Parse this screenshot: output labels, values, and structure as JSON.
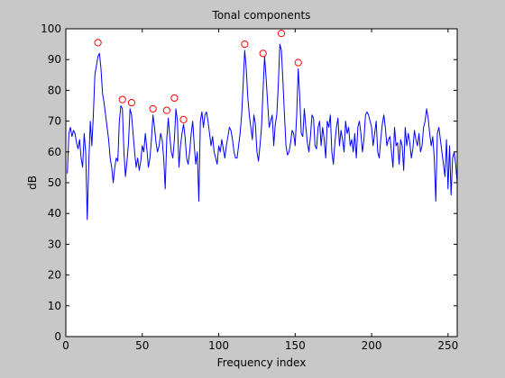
{
  "chart_data": {
    "type": "line",
    "title": "Tonal components",
    "xlabel": "Frequency index",
    "ylabel": "dB",
    "xlim": [
      0,
      256
    ],
    "ylim": [
      0,
      100
    ],
    "xticks": [
      0,
      50,
      100,
      150,
      200,
      250
    ],
    "yticks": [
      0,
      10,
      20,
      30,
      40,
      50,
      60,
      70,
      80,
      90,
      100
    ],
    "grid": false,
    "colors": {
      "line": "#0000ff",
      "marker": "#ff0000",
      "axes_bg": "#ffffff",
      "figure_bg": "#c8c8c8"
    },
    "series": [
      {
        "x": [
          1,
          2,
          3,
          4,
          5,
          6,
          7,
          8,
          9,
          10,
          11,
          12,
          13,
          14,
          15,
          16,
          17,
          18,
          19,
          20,
          21,
          22,
          23,
          24,
          25,
          26,
          27,
          28,
          29,
          30,
          31,
          32,
          33,
          34,
          35,
          36,
          37,
          38,
          39,
          40,
          41,
          42,
          43,
          44,
          45,
          46,
          47,
          48,
          49,
          50,
          51,
          52,
          53,
          54,
          55,
          56,
          57,
          58,
          59,
          60,
          61,
          62,
          63,
          64,
          65,
          66,
          67,
          68,
          69,
          70,
          71,
          72,
          73,
          74,
          75,
          76,
          77,
          78,
          79,
          80,
          81,
          82,
          83,
          84,
          85,
          86,
          87,
          88,
          89,
          90,
          91,
          92,
          93,
          94,
          95,
          96,
          97,
          98,
          99,
          100,
          101,
          102,
          103,
          104,
          105,
          106,
          107,
          108,
          109,
          110,
          111,
          112,
          113,
          114,
          115,
          116,
          117,
          118,
          119,
          120,
          121,
          122,
          123,
          124,
          125,
          126,
          127,
          128,
          129,
          130,
          131,
          132,
          133,
          134,
          135,
          136,
          137,
          138,
          139,
          140,
          141,
          142,
          143,
          144,
          145,
          146,
          147,
          148,
          149,
          150,
          151,
          152,
          153,
          154,
          155,
          156,
          157,
          158,
          159,
          160,
          161,
          162,
          163,
          164,
          165,
          166,
          167,
          168,
          169,
          170,
          171,
          172,
          173,
          174,
          175,
          176,
          177,
          178,
          179,
          180,
          181,
          182,
          183,
          184,
          185,
          186,
          187,
          188,
          189,
          190,
          191,
          192,
          193,
          194,
          195,
          196,
          197,
          198,
          199,
          200,
          201,
          202,
          203,
          204,
          205,
          206,
          207,
          208,
          209,
          210,
          211,
          212,
          213,
          214,
          215,
          216,
          217,
          218,
          219,
          220,
          221,
          222,
          223,
          224,
          225,
          226,
          227,
          228,
          229,
          230,
          231,
          232,
          233,
          234,
          235,
          236,
          237,
          238,
          239,
          240,
          241,
          242,
          243,
          244,
          245,
          246,
          247,
          248,
          249,
          250,
          251,
          252,
          253,
          254,
          255,
          256
        ],
        "values": [
          53,
          66,
          68,
          65,
          67,
          66,
          63,
          61,
          64,
          58,
          55,
          66,
          60,
          38,
          56,
          70,
          62,
          72,
          85,
          88,
          91,
          92,
          87,
          79,
          76,
          72,
          68,
          64,
          58,
          55,
          50,
          55,
          58,
          57,
          70,
          75,
          74,
          60,
          52,
          57,
          63,
          74,
          72,
          66,
          60,
          55,
          58,
          54,
          57,
          62,
          60,
          66,
          61,
          55,
          58,
          64,
          72,
          68,
          63,
          60,
          62,
          66,
          64,
          58,
          48,
          64,
          71,
          65,
          60,
          58,
          64,
          74,
          70,
          55,
          62,
          66,
          69,
          65,
          58,
          56,
          60,
          66,
          70,
          62,
          56,
          60,
          44,
          70,
          73,
          68,
          72,
          73,
          70,
          66,
          62,
          65,
          60,
          58,
          56,
          62,
          60,
          64,
          61,
          58,
          62,
          65,
          68,
          67,
          64,
          60,
          58,
          58,
          62,
          66,
          72,
          82,
          93,
          87,
          78,
          72,
          68,
          64,
          72,
          69,
          60,
          57,
          62,
          68,
          80,
          91,
          84,
          76,
          68,
          70,
          72,
          62,
          69,
          72,
          82,
          95,
          93,
          83,
          72,
          62,
          59,
          60,
          63,
          67,
          66,
          62,
          72,
          87,
          78,
          66,
          65,
          74,
          68,
          63,
          60,
          65,
          72,
          71,
          62,
          61,
          68,
          70,
          62,
          68,
          64,
          58,
          70,
          68,
          72,
          60,
          56,
          63,
          68,
          71,
          62,
          67,
          64,
          60,
          70,
          66,
          68,
          62,
          64,
          60,
          66,
          58,
          68,
          70,
          66,
          60,
          64,
          72,
          73,
          72,
          70,
          68,
          62,
          66,
          70,
          60,
          58,
          64,
          69,
          72,
          68,
          62,
          64,
          65,
          60,
          55,
          68,
          62,
          63,
          56,
          64,
          62,
          54,
          68,
          62,
          66,
          63,
          58,
          61,
          67,
          64,
          62,
          66,
          60,
          62,
          68,
          70,
          74,
          71,
          66,
          62,
          65,
          58,
          44,
          66,
          68,
          64,
          60,
          56,
          52,
          64,
          48,
          62,
          46,
          58,
          60,
          56,
          50
        ]
      }
    ],
    "tonal_components": {
      "x": [
        21,
        37,
        43,
        57,
        66,
        71,
        77,
        117,
        129,
        141,
        152
      ],
      "y": [
        95.5,
        77,
        76,
        74,
        73.5,
        77.5,
        70.5,
        95,
        92,
        98.5,
        89
      ]
    }
  }
}
